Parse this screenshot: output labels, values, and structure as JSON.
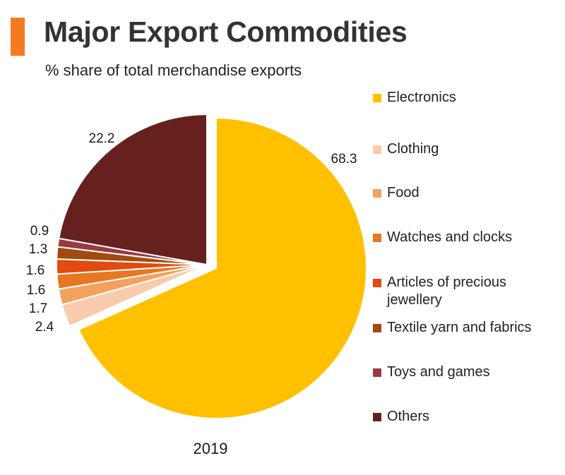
{
  "header": {
    "title": "Major Export Commodities",
    "subtitle": "% share of total merchandise exports",
    "accent_color": "#F47B20"
  },
  "chart_data": {
    "type": "pie",
    "title": "Major Export Commodities",
    "subtitle": "% share of total merchandise exports",
    "xlabel": "2019",
    "legend_position": "right",
    "slices": [
      {
        "name": "Electronics",
        "value": 68.3,
        "label": "68.3",
        "color": "#FFC000"
      },
      {
        "name": "Clothing",
        "value": 2.4,
        "label": "2.4",
        "color": "#F8CBAD"
      },
      {
        "name": "Food",
        "value": 1.7,
        "label": "1.7",
        "color": "#F4A15E"
      },
      {
        "name": "Watches and clocks",
        "value": 1.6,
        "label": "1.6",
        "color": "#E87722"
      },
      {
        "name": "Articles of precious jewellery",
        "value": 1.6,
        "label": "1.6",
        "color": "#E24A0F"
      },
      {
        "name": "Textile yarn and fabrics",
        "value": 1.3,
        "label": "1.3",
        "color": "#A04A0E"
      },
      {
        "name": "Toys and games",
        "value": 0.9,
        "label": "0.9",
        "color": "#9B3843"
      },
      {
        "name": "Others",
        "value": 22.2,
        "label": "22.2",
        "color": "#66211F"
      }
    ]
  }
}
